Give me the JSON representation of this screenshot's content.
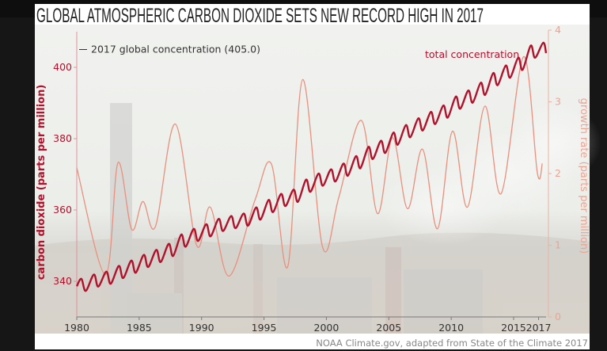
{
  "chart_data": {
    "type": "line",
    "title": "GLOBAL ATMOSPHERIC CARBON DIOXIDE SETS NEW RECORD HIGH IN 2017",
    "ylabel_left": "carbon dioxide (parts per million)",
    "ylabel_right": "growth rate (parts per million)",
    "xlabel": "",
    "xlim": [
      1980,
      2017.6
    ],
    "ylim_left": [
      330,
      410
    ],
    "ylim_right": [
      0,
      4
    ],
    "x_ticks": [
      "1980",
      "1985",
      "1990",
      "1995",
      "2000",
      "2005",
      "2010",
      "2015",
      "2017"
    ],
    "y_ticks_left": [
      "340",
      "360",
      "380",
      "400"
    ],
    "y_ticks_right": [
      "0",
      "1",
      "2",
      "3",
      "4"
    ],
    "grid": false,
    "annotation": {
      "text": "2017 global concentration (405.0)",
      "value": 405.0
    },
    "credit": "NOAA Climate.gov, adapted from State of the Climate 2017",
    "colors": {
      "concentration": "#b0112b",
      "growth": "#e8907e",
      "left_axis": "#b0112b",
      "right_axis": "#e8a595"
    },
    "series": [
      {
        "name": "total concentration",
        "axis": "left",
        "x": [
          1980.0,
          1980.37,
          1980.72,
          1981.37,
          1981.72,
          1982.37,
          1982.72,
          1983.37,
          1983.72,
          1984.37,
          1984.72,
          1985.37,
          1985.72,
          1986.37,
          1986.72,
          1987.37,
          1987.72,
          1988.37,
          1988.72,
          1989.37,
          1989.72,
          1990.37,
          1990.72,
          1991.37,
          1991.72,
          1992.37,
          1992.72,
          1993.37,
          1993.72,
          1994.37,
          1994.72,
          1995.37,
          1995.72,
          1996.37,
          1996.72,
          1997.37,
          1997.72,
          1998.37,
          1998.72,
          1999.37,
          1999.72,
          2000.37,
          2000.72,
          2001.37,
          2001.72,
          2002.37,
          2002.72,
          2003.37,
          2003.72,
          2004.37,
          2004.72,
          2005.37,
          2005.72,
          2006.37,
          2006.72,
          2007.37,
          2007.72,
          2008.37,
          2008.72,
          2009.37,
          2009.72,
          2010.37,
          2010.72,
          2011.37,
          2011.72,
          2012.37,
          2012.72,
          2013.37,
          2013.72,
          2014.37,
          2014.72,
          2015.37,
          2015.72,
          2016.37,
          2016.72,
          2017.37,
          2017.6
        ],
        "y": [
          338.6,
          340.7,
          337.3,
          341.9,
          338.5,
          342.7,
          339.3,
          344.3,
          340.9,
          345.8,
          342.4,
          347.4,
          344.0,
          348.8,
          345.4,
          350.5,
          347.1,
          353.1,
          349.7,
          354.7,
          351.3,
          356.0,
          352.6,
          357.5,
          354.1,
          358.3,
          354.9,
          359.0,
          355.6,
          360.7,
          357.3,
          362.8,
          359.4,
          364.5,
          361.1,
          365.7,
          362.3,
          368.5,
          365.1,
          370.2,
          366.8,
          371.4,
          368.0,
          373.0,
          369.6,
          375.1,
          371.7,
          377.7,
          374.3,
          379.4,
          376.0,
          381.7,
          378.3,
          383.8,
          380.4,
          385.7,
          382.3,
          387.5,
          384.1,
          389.3,
          385.9,
          391.8,
          388.4,
          393.5,
          390.1,
          395.7,
          392.3,
          398.4,
          395.0,
          400.5,
          397.1,
          402.7,
          399.3,
          406.1,
          402.7,
          406.9,
          404.0
        ]
      },
      {
        "name": "growth rate",
        "axis": "right",
        "x": [
          1980.0,
          1982.3,
          1983.3,
          1984.4,
          1985.3,
          1986.3,
          1987.9,
          1989.6,
          1990.7,
          1992.2,
          1994.3,
          1995.6,
          1996.9,
          1998.1,
          1999.7,
          2001.0,
          2002.8,
          2004.1,
          2005.3,
          2006.5,
          2007.7,
          2008.9,
          2010.1,
          2011.3,
          2012.7,
          2014.0,
          2015.8,
          2016.9,
          2017.3
        ],
        "y": [
          2.08,
          0.59,
          2.15,
          1.22,
          1.61,
          1.26,
          2.69,
          1.0,
          1.53,
          0.57,
          1.64,
          2.13,
          0.7,
          3.31,
          0.97,
          1.67,
          2.74,
          1.44,
          2.5,
          1.51,
          2.34,
          1.23,
          2.59,
          1.53,
          2.94,
          1.72,
          3.63,
          2.01,
          2.14
        ]
      }
    ]
  }
}
